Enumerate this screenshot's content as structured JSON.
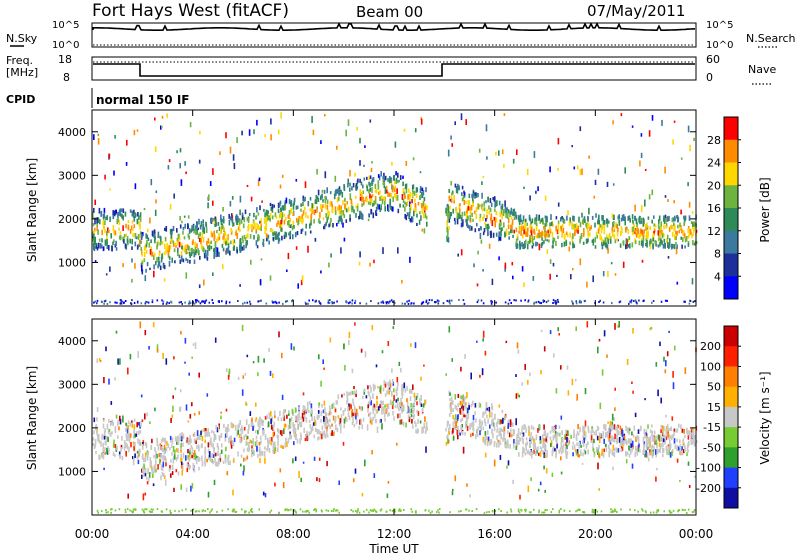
{
  "header": {
    "station": "Fort Hays West (fitACF)",
    "beam": "Beam 00",
    "date": "07/May/2011"
  },
  "noise_panel": {
    "left_label": "N.Sky",
    "right_label": "N.Search",
    "left_ticks": [
      "10^5",
      "10^0"
    ],
    "right_ticks": [
      "10^5",
      "10^0"
    ]
  },
  "freq_panel": {
    "left_label_1": "Freq.",
    "left_label_2": "[MHz]",
    "right_label": "Nave",
    "left_ticks": [
      "18",
      "8"
    ],
    "right_ticks": [
      "60",
      "0"
    ]
  },
  "cpid_panel": {
    "label": "CPID",
    "value": "normal 150 IF"
  },
  "chart_data": [
    {
      "type": "heatmap",
      "title": "",
      "ylabel": "Slant Range [km]",
      "xlabel": "",
      "ylim": [
        0,
        4500
      ],
      "yticks": [
        "1000",
        "2000",
        "3000",
        "4000"
      ],
      "colorbar_label": "Power [dB]",
      "colorbar_ticks": [
        "4",
        "8",
        "12",
        "16",
        "20",
        "24",
        "28"
      ],
      "colors": [
        "#0000ff",
        "#1c2f9b",
        "#3b7a9e",
        "#2e8b57",
        "#6db33f",
        "#ffd700",
        "#ff8c00",
        "#ff0000"
      ]
    },
    {
      "type": "heatmap",
      "title": "",
      "ylabel": "Slant Range [km]",
      "xlabel": "Time UT",
      "ylim": [
        0,
        4500
      ],
      "yticks": [
        "1000",
        "2000",
        "3000",
        "4000"
      ],
      "colorbar_label": "Velocity [m s⁻¹]",
      "colorbar_ticks": [
        "200",
        "100",
        "50",
        "15",
        "-15",
        "-50",
        "-100",
        "-200"
      ],
      "colors": [
        "#1010a0",
        "#2040ff",
        "#2ea02e",
        "#77cc33",
        "#c8c8c8",
        "#ffb000",
        "#ff7f00",
        "#ff2000",
        "#cc0000"
      ]
    }
  ],
  "xaxis": {
    "label": "Time UT",
    "ticks": [
      "00:00",
      "04:00",
      "08:00",
      "12:00",
      "16:00",
      "20:00",
      "00:00"
    ]
  }
}
